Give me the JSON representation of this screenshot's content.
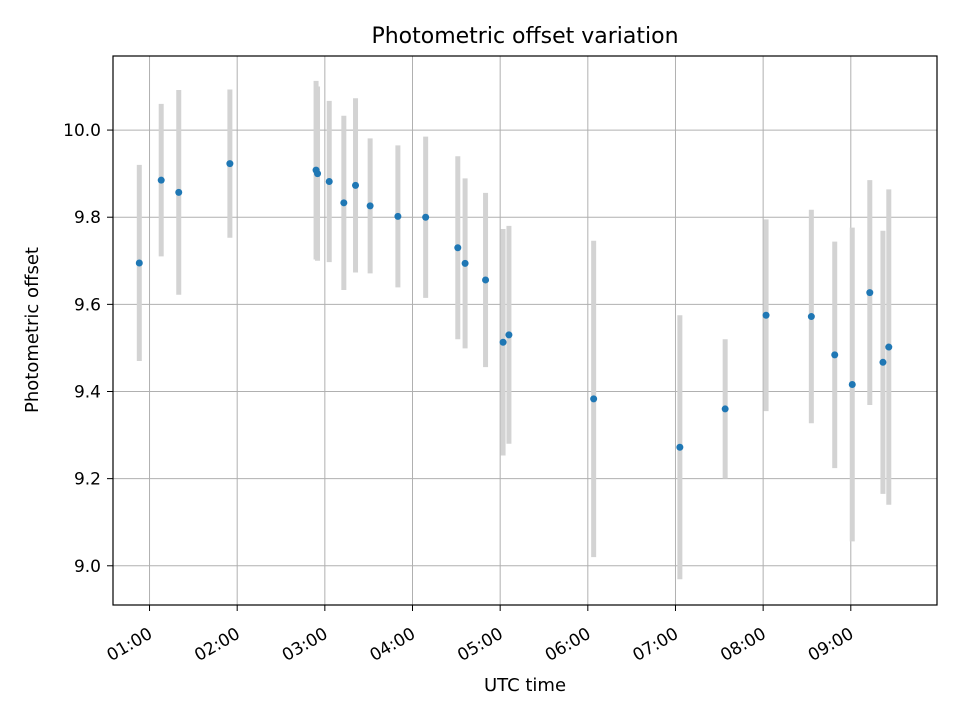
{
  "chart_data": {
    "type": "scatter",
    "title": "Photometric offset variation",
    "xlabel": "UTC time",
    "ylabel": "Photometric offset",
    "x_axis_type": "time",
    "x_tick_labels": [
      "01:00",
      "02:00",
      "03:00",
      "04:00",
      "05:00",
      "06:00",
      "07:00",
      "08:00",
      "09:00"
    ],
    "y_tick_values": [
      9.0,
      9.2,
      9.4,
      9.6,
      9.8,
      10.0
    ],
    "y_tick_labels": [
      "9.0",
      "9.2",
      "9.4",
      "9.6",
      "9.8",
      "10.0"
    ],
    "xlim": [
      "00:35",
      "09:59"
    ],
    "ylim": [
      8.91,
      10.17
    ],
    "grid": true,
    "x_tick_rotation_deg": 30,
    "colors": {
      "points": "#1f77b4",
      "error_bars": "#d3d3d3",
      "grid": "#b0b0b0"
    },
    "series": [
      {
        "points": [
          {
            "x": "00:53",
            "y": 9.695,
            "err": 0.225
          },
          {
            "x": "01:08",
            "y": 9.885,
            "err": 0.175
          },
          {
            "x": "01:20",
            "y": 9.857,
            "err": 0.235
          },
          {
            "x": "01:55",
            "y": 9.923,
            "err": 0.17
          },
          {
            "x": "02:54",
            "y": 9.908,
            "err": 0.205
          },
          {
            "x": "02:55",
            "y": 9.9,
            "err": 0.2
          },
          {
            "x": "03:03",
            "y": 9.882,
            "err": 0.185
          },
          {
            "x": "03:13",
            "y": 9.833,
            "err": 0.2
          },
          {
            "x": "03:21",
            "y": 9.873,
            "err": 0.2
          },
          {
            "x": "03:31",
            "y": 9.826,
            "err": 0.155
          },
          {
            "x": "03:50",
            "y": 9.802,
            "err": 0.163
          },
          {
            "x": "04:09",
            "y": 9.8,
            "err": 0.185
          },
          {
            "x": "04:31",
            "y": 9.73,
            "err": 0.21
          },
          {
            "x": "04:36",
            "y": 9.694,
            "err": 0.195
          },
          {
            "x": "04:50",
            "y": 9.656,
            "err": 0.2
          },
          {
            "x": "05:02",
            "y": 9.513,
            "err": 0.26
          },
          {
            "x": "05:06",
            "y": 9.53,
            "err": 0.25
          },
          {
            "x": "06:04",
            "y": 9.383,
            "err": 0.363
          },
          {
            "x": "07:03",
            "y": 9.272,
            "err": 0.303
          },
          {
            "x": "07:34",
            "y": 9.36,
            "err": 0.16
          },
          {
            "x": "08:02",
            "y": 9.575,
            "err": 0.22
          },
          {
            "x": "08:33",
            "y": 9.572,
            "err": 0.245
          },
          {
            "x": "08:49",
            "y": 9.484,
            "err": 0.26
          },
          {
            "x": "09:01",
            "y": 9.416,
            "err": 0.36
          },
          {
            "x": "09:13",
            "y": 9.627,
            "err": 0.258
          },
          {
            "x": "09:22",
            "y": 9.467,
            "err": 0.302
          },
          {
            "x": "09:26",
            "y": 9.502,
            "err": 0.362
          }
        ]
      }
    ]
  }
}
